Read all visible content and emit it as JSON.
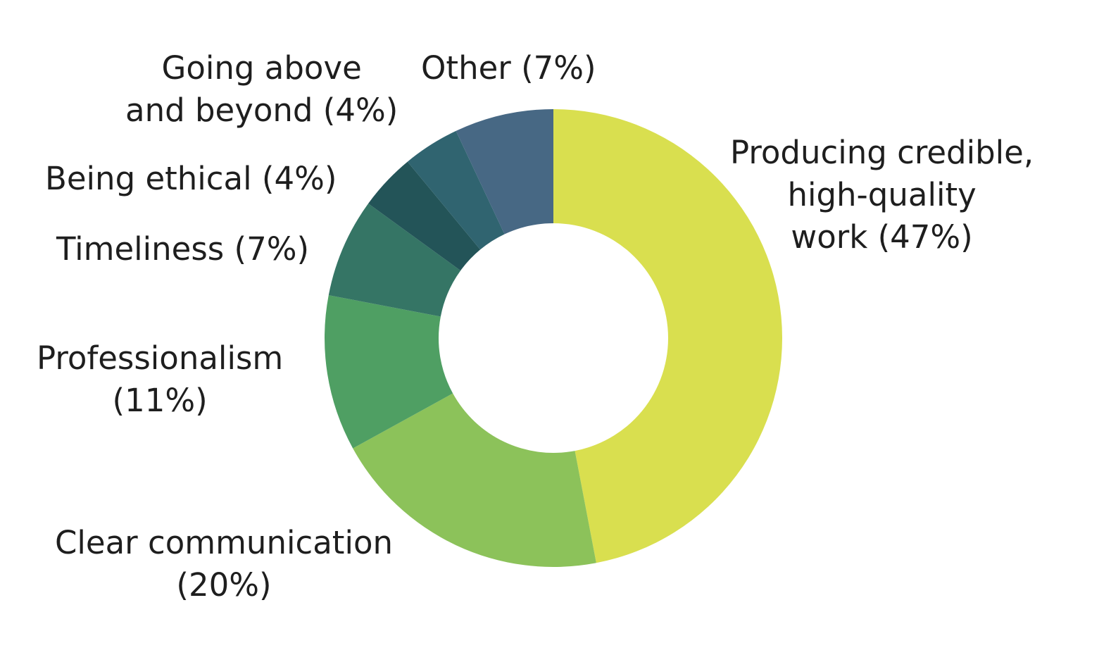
{
  "chart_data": {
    "type": "pie",
    "categories": [
      "Producing credible, high-quality work",
      "Clear communication",
      "Professionalism",
      "Timeliness",
      "Being ethical",
      "Going above and beyond",
      "Other"
    ],
    "values": [
      47,
      20,
      11,
      7,
      4,
      4,
      7
    ],
    "unit": "%",
    "donut": true,
    "start_angle": "12 o'clock",
    "direction": "clockwise",
    "colors": [
      "#D9DF4F",
      "#8CC25A",
      "#4F9F63",
      "#357565",
      "#235458",
      "#306470",
      "#476884"
    ],
    "labels": [
      {
        "line1": "Producing credible,",
        "line2": "high-quality",
        "line3": "work (47%)"
      },
      {
        "line1": "Clear communication",
        "line2": "(20%)"
      },
      {
        "line1": "Professionalism",
        "line2": "(11%)"
      },
      {
        "line1": "Timeliness (7%)"
      },
      {
        "line1": "Being ethical (4%)"
      },
      {
        "line1": "Going above",
        "line2": "and beyond (4%)"
      },
      {
        "line1": "Other (7%)"
      }
    ],
    "legend": "none"
  }
}
